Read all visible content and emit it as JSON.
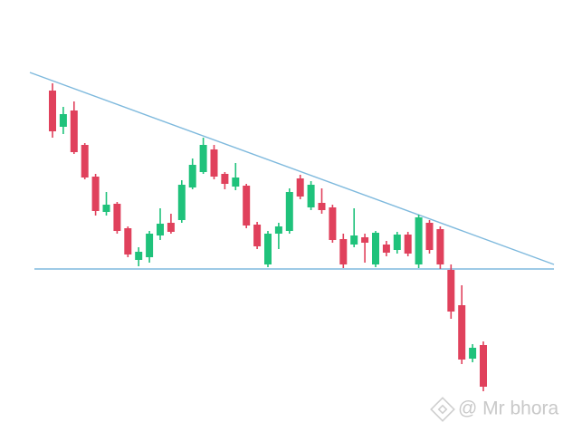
{
  "chart_data": {
    "type": "candlestick",
    "open": [
      380,
      340,
      358,
      320,
      285,
      246,
      255,
      228,
      193,
      196,
      220,
      234,
      237,
      273,
      290,
      315,
      288,
      274,
      275,
      232,
      188,
      222,
      225,
      283,
      251,
      256,
      251,
      216,
      210,
      218,
      188,
      210,
      204,
      221,
      188,
      234,
      227,
      182,
      143,
      84,
      99
    ],
    "high": [
      388,
      362,
      368,
      322,
      288,
      268,
      257,
      230,
      207,
      225,
      250,
      244,
      281,
      305,
      328,
      320,
      290,
      300,
      277,
      235,
      225,
      234,
      272,
      287,
      280,
      272,
      254,
      222,
      250,
      222,
      225,
      214,
      224,
      224,
      243,
      237,
      230,
      188,
      165,
      100,
      103
    ],
    "low": [
      328,
      332,
      310,
      282,
      242,
      242,
      222,
      196,
      186,
      190,
      215,
      222,
      234,
      271,
      288,
      282,
      271,
      270,
      228,
      205,
      185,
      205,
      222,
      260,
      248,
      244,
      212,
      184,
      207,
      190,
      185,
      197,
      200,
      197,
      184,
      200,
      183,
      128,
      78,
      80,
      48
    ],
    "close": [
      335,
      354,
      312,
      284,
      247,
      254,
      225,
      199,
      202,
      222,
      233,
      224,
      276,
      298,
      320,
      285,
      277,
      284,
      231,
      208,
      222,
      230,
      268,
      263,
      276,
      248,
      215,
      188,
      220,
      212,
      223,
      201,
      221,
      200,
      240,
      204,
      188,
      136,
      83,
      96,
      53
    ],
    "up_color": "#1fc27b",
    "down_color": "#e0415c",
    "watermark": "@ Mr bhora"
  }
}
